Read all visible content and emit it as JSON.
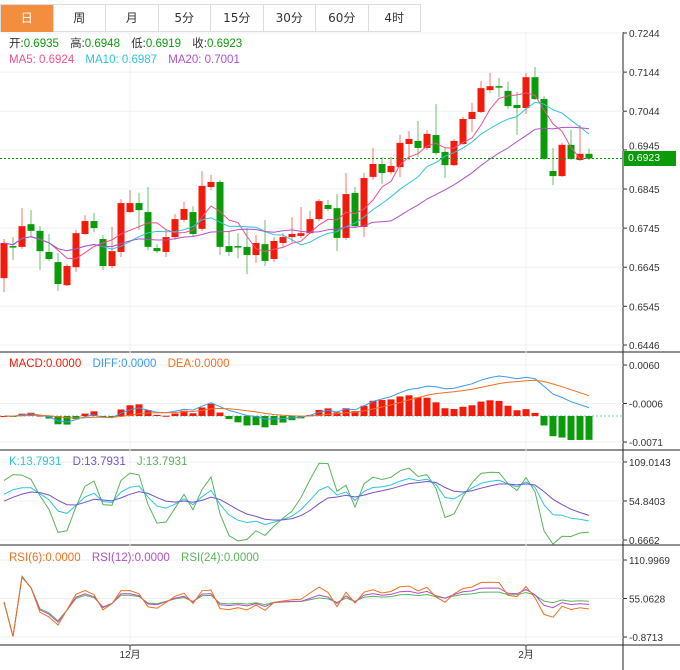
{
  "tabs": [
    {
      "label": "日",
      "active": true
    },
    {
      "label": "周"
    },
    {
      "label": "月"
    },
    {
      "label": "5分"
    },
    {
      "label": "15分"
    },
    {
      "label": "30分"
    },
    {
      "label": "60分"
    },
    {
      "label": "4时"
    }
  ],
  "ohlc_legend": {
    "open_label": "开:",
    "open": "0.6935",
    "high_label": "高:",
    "high": "0.6948",
    "low_label": "低:",
    "low": "0.6919",
    "close_label": "收:",
    "close": "0.6923"
  },
  "ma_legend": {
    "ma5": "MA5: 0.6924",
    "ma10": "MA10: 0.6987",
    "ma20": "MA20: 0.7001"
  },
  "macd_legend": {
    "macd": "MACD:0.0000",
    "diff": "DIFF:0.0000",
    "dea": "DEA:0.0000"
  },
  "kdj_legend": {
    "k": "K:13.7931",
    "d": "D:13.7931",
    "j": "J:13.7931"
  },
  "rsi_legend": {
    "rsi6": "RSI(6):0.0000",
    "rsi12": "RSI(12):0.0000",
    "rsi24": "RSI(24):0.0000"
  },
  "last_price": "0.6923",
  "colors": {
    "up": "#f21a0a",
    "down": "#0a9a0a",
    "ma5": "#f0508c",
    "ma10": "#2ec4dc",
    "ma20": "#b050c8",
    "tab_active": "#f28e3e",
    "diff": "#3a9af0",
    "dea": "#f07020",
    "k": "#2ec4dc",
    "d": "#7a50c8",
    "j": "#5ab45a",
    "rsi6": "#f07020",
    "rsi12": "#b050c8",
    "rsi24": "#5ab45a"
  },
  "chart_data": {
    "type": "candlestick",
    "price_axis_ticks": [
      "0.7244",
      "0.7144",
      "0.7044",
      "0.6945",
      "0.6845",
      "0.6745",
      "0.6645",
      "0.6545",
      "0.6446"
    ],
    "price_range": [
      0.6446,
      0.7244
    ],
    "macd_axis_ticks": [
      "0.0060",
      "-0.0006",
      "-0.0071"
    ],
    "kdj_axis_ticks": [
      "109.0143",
      "54.8403",
      "0.6662"
    ],
    "rsi_axis_ticks": [
      "110.9969",
      "55.0628",
      "-0.8713"
    ],
    "x_labels": [
      {
        "label": "12月",
        "index": 14
      },
      {
        "label": "2月",
        "index": 58
      }
    ],
    "candles_ohlc": [
      [
        0.6617,
        0.6717,
        0.6581,
        0.6707
      ],
      [
        0.6699,
        0.6722,
        0.6663,
        0.6698
      ],
      [
        0.6697,
        0.6796,
        0.6692,
        0.675
      ],
      [
        0.6755,
        0.6791,
        0.6722,
        0.6738
      ],
      [
        0.6738,
        0.675,
        0.6638,
        0.6686
      ],
      [
        0.6684,
        0.673,
        0.6661,
        0.6666
      ],
      [
        0.6658,
        0.6681,
        0.6584,
        0.6602
      ],
      [
        0.6599,
        0.6653,
        0.6597,
        0.6648
      ],
      [
        0.6645,
        0.674,
        0.6633,
        0.6732
      ],
      [
        0.673,
        0.6778,
        0.6727,
        0.6763
      ],
      [
        0.6763,
        0.6784,
        0.6735,
        0.6745
      ],
      [
        0.6717,
        0.6727,
        0.6638,
        0.6648
      ],
      [
        0.6648,
        0.6748,
        0.6643,
        0.6686
      ],
      [
        0.6684,
        0.6819,
        0.6671,
        0.6809
      ],
      [
        0.6786,
        0.6842,
        0.6784,
        0.6809
      ],
      [
        0.6809,
        0.6835,
        0.674,
        0.6791
      ],
      [
        0.6786,
        0.685,
        0.6689,
        0.6697
      ],
      [
        0.6694,
        0.6704,
        0.6681,
        0.6686
      ],
      [
        0.6684,
        0.674,
        0.6671,
        0.6722
      ],
      [
        0.6722,
        0.6781,
        0.6715,
        0.6768
      ],
      [
        0.6766,
        0.6812,
        0.6761,
        0.6794
      ],
      [
        0.6786,
        0.6801,
        0.6722,
        0.673
      ],
      [
        0.6743,
        0.6891,
        0.6738,
        0.6853
      ],
      [
        0.685,
        0.6881,
        0.6842,
        0.6863
      ],
      [
        0.6863,
        0.6868,
        0.6676,
        0.6697
      ],
      [
        0.6699,
        0.6735,
        0.6674,
        0.6684
      ],
      [
        0.6699,
        0.6732,
        0.6668,
        0.6698
      ],
      [
        0.6697,
        0.6745,
        0.6627,
        0.6676
      ],
      [
        0.6676,
        0.6727,
        0.6656,
        0.6707
      ],
      [
        0.6704,
        0.6766,
        0.6648,
        0.6661
      ],
      [
        0.6666,
        0.6722,
        0.6658,
        0.6712
      ],
      [
        0.6707,
        0.6732,
        0.6697,
        0.6722
      ],
      [
        0.6722,
        0.6773,
        0.6709,
        0.673
      ],
      [
        0.6725,
        0.6799,
        0.672,
        0.6732
      ],
      [
        0.6732,
        0.6789,
        0.673,
        0.6768
      ],
      [
        0.6768,
        0.6819,
        0.6763,
        0.6814
      ],
      [
        0.6804,
        0.6817,
        0.6789,
        0.6794
      ],
      [
        0.6796,
        0.6832,
        0.6686,
        0.672
      ],
      [
        0.672,
        0.6886,
        0.6715,
        0.6832
      ],
      [
        0.6835,
        0.685,
        0.6745,
        0.675
      ],
      [
        0.6748,
        0.6886,
        0.6722,
        0.6873
      ],
      [
        0.6876,
        0.695,
        0.6868,
        0.6909
      ],
      [
        0.6909,
        0.6927,
        0.6858,
        0.6886
      ],
      [
        0.6888,
        0.6927,
        0.6883,
        0.6904
      ],
      [
        0.6901,
        0.6983,
        0.6876,
        0.6963
      ],
      [
        0.696,
        0.6993,
        0.6919,
        0.6973
      ],
      [
        0.6968,
        0.7019,
        0.6927,
        0.695
      ],
      [
        0.695,
        0.6996,
        0.6945,
        0.6986
      ],
      [
        0.6983,
        0.7062,
        0.6932,
        0.6937
      ],
      [
        0.694,
        0.695,
        0.6873,
        0.6906
      ],
      [
        0.6906,
        0.6973,
        0.6904,
        0.6968
      ],
      [
        0.696,
        0.7029,
        0.6958,
        0.7024
      ],
      [
        0.7024,
        0.7065,
        0.6991,
        0.7042
      ],
      [
        0.7042,
        0.7121,
        0.7039,
        0.7103
      ],
      [
        0.7098,
        0.7142,
        0.7091,
        0.7108
      ],
      [
        0.7108,
        0.7129,
        0.708,
        0.7107
      ],
      [
        0.7096,
        0.7119,
        0.705,
        0.7057
      ],
      [
        0.706,
        0.7093,
        0.6983,
        0.7052
      ],
      [
        0.7052,
        0.7142,
        0.7037,
        0.7131
      ],
      [
        0.7131,
        0.7157,
        0.7073,
        0.7075
      ],
      [
        0.7075,
        0.7083,
        0.6919,
        0.6922
      ],
      [
        0.6891,
        0.695,
        0.6855,
        0.6878
      ],
      [
        0.6878,
        0.6963,
        0.6876,
        0.6958
      ],
      [
        0.6958,
        0.6996,
        0.6919,
        0.6922
      ],
      [
        0.6919,
        0.7009,
        0.6917,
        0.6935
      ],
      [
        0.6935,
        0.6948,
        0.6919,
        0.6923
      ]
    ]
  }
}
